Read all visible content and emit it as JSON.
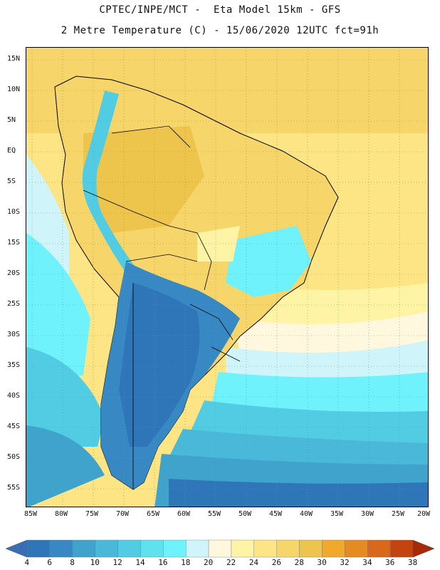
{
  "header": {
    "line1": "CPTEC/INPE/MCT -  Eta Model 15km - GFS",
    "line2": "2 Metre Temperature (C) - 15/06/2020 12UTC fct=91h"
  },
  "map": {
    "lat_ticks": [
      "15N",
      "10N",
      "5N",
      "EQ",
      "5S",
      "10S",
      "15S",
      "20S",
      "25S",
      "30S",
      "35S",
      "40S",
      "45S",
      "50S",
      "55S"
    ],
    "lon_ticks": [
      "85W",
      "80W",
      "75W",
      "70W",
      "65W",
      "60W",
      "55W",
      "50W",
      "45W",
      "40W",
      "35W",
      "30W",
      "25W",
      "20W"
    ],
    "field": "2 metre temperature",
    "units": "C"
  },
  "colorbar": {
    "labels": [
      "4",
      "6",
      "8",
      "10",
      "12",
      "14",
      "16",
      "18",
      "20",
      "22",
      "24",
      "26",
      "28",
      "30",
      "32",
      "34",
      "36",
      "38"
    ],
    "colors": [
      "#3a6db3",
      "#2f76b9",
      "#3889c3",
      "#3fa3cc",
      "#4ab8d9",
      "#52cce2",
      "#5fe2ee",
      "#6ff2fb",
      "#cff5fa",
      "#fff8de",
      "#fff4a6",
      "#fde585",
      "#f6d56a",
      "#eec54c",
      "#f1a92b",
      "#e68a22",
      "#d9681b",
      "#c4440f",
      "#a62908"
    ]
  }
}
